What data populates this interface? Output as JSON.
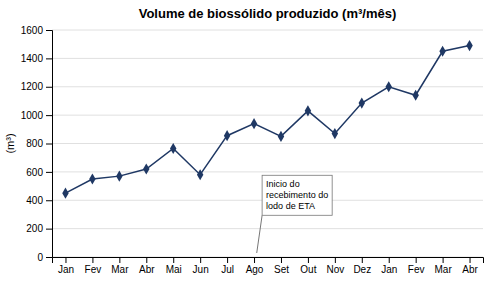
{
  "chart_data": {
    "type": "line",
    "title": "Volume de biossólido produzido (m³/mês)",
    "y_label": "(m³)",
    "categories": [
      "Jan",
      "Fev",
      "Mar",
      "Abr",
      "Mai",
      "Jun",
      "Jul",
      "Ago",
      "Set",
      "Out",
      "Nov",
      "Dez",
      "Jan",
      "Fev",
      "Mar",
      "Abr"
    ],
    "values": [
      450,
      550,
      570,
      620,
      765,
      580,
      855,
      940,
      850,
      1030,
      870,
      1085,
      1200,
      1140,
      1450,
      1490
    ],
    "color": "#1F3864",
    "marker": "diamond",
    "ylim": [
      0,
      1600
    ],
    "yticks": [
      0,
      200,
      400,
      600,
      800,
      1000,
      1200,
      1400,
      1600
    ],
    "grid": true,
    "annotations": [
      {
        "text": "Inicio do\nrecebimento do\nlodo de ETA",
        "x": 7
      }
    ]
  }
}
